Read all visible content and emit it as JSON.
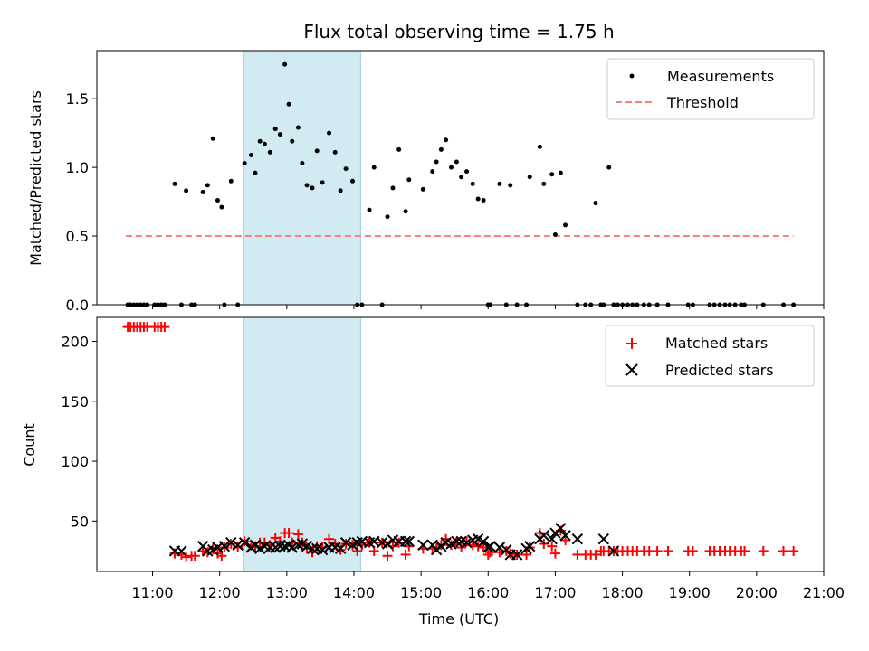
{
  "chart_data": [
    {
      "type": "scatter",
      "title": "Flux total observing time = 1.75 h",
      "xlabel": "",
      "ylabel": "Matched/Predicted stars",
      "ylim": [
        0,
        1.85
      ],
      "yticks": [
        0.0,
        0.5,
        1.0,
        1.5
      ],
      "ytick_labels": [
        "0.0",
        "0.5",
        "1.0",
        "1.5"
      ],
      "xlim_hours": [
        10.17,
        21.0
      ],
      "shaded_interval_hours": [
        12.35,
        14.1
      ],
      "shaded_color": "#add8e6",
      "legend": {
        "position": "top-right",
        "entries": [
          "Measurements",
          "Threshold"
        ]
      },
      "series": [
        {
          "name": "Measurements",
          "marker": "dot",
          "color": "#000000",
          "x": [
            10.63,
            10.67,
            10.72,
            10.77,
            10.82,
            10.87,
            10.92,
            11.03,
            11.08,
            11.13,
            11.18,
            11.33,
            11.43,
            11.5,
            11.58,
            11.63,
            11.75,
            11.82,
            11.9,
            11.97,
            12.03,
            12.07,
            12.17,
            12.27,
            12.37,
            12.47,
            12.53,
            12.6,
            12.67,
            12.75,
            12.83,
            12.9,
            12.97,
            13.03,
            13.08,
            13.17,
            13.23,
            13.3,
            13.38,
            13.45,
            13.53,
            13.63,
            13.72,
            13.8,
            13.88,
            13.98,
            14.05,
            14.12,
            14.23,
            14.3,
            14.42,
            14.5,
            14.58,
            14.67,
            14.77,
            14.82,
            15.03,
            15.17,
            15.23,
            15.3,
            15.37,
            15.45,
            15.53,
            15.6,
            15.68,
            15.77,
            15.85,
            15.93,
            16.0,
            16.03,
            16.17,
            16.27,
            16.33,
            16.43,
            16.57,
            16.62,
            16.77,
            16.83,
            16.95,
            17.0,
            17.08,
            17.15,
            17.33,
            17.45,
            17.53,
            17.6,
            17.68,
            17.72,
            17.8,
            17.87,
            17.93,
            18.0,
            18.08,
            18.15,
            18.22,
            18.32,
            18.4,
            18.52,
            18.68,
            18.98,
            19.05,
            19.3,
            19.37,
            19.45,
            19.53,
            19.6,
            19.68,
            19.77,
            19.82,
            20.1,
            20.4,
            20.55
          ],
          "y": [
            0,
            0,
            0,
            0,
            0,
            0,
            0,
            0,
            0,
            0,
            0,
            0.88,
            0,
            0.83,
            0,
            0,
            0.82,
            0.87,
            1.21,
            0.76,
            0.71,
            0,
            0.9,
            0,
            1.03,
            1.09,
            0.96,
            1.19,
            1.17,
            1.11,
            1.28,
            1.24,
            1.75,
            1.46,
            1.19,
            1.29,
            1.03,
            0.87,
            0.85,
            1.12,
            0.89,
            1.25,
            1.11,
            0.83,
            0.99,
            0.9,
            0,
            0,
            0.69,
            1.0,
            0,
            0.64,
            0.85,
            1.13,
            0.68,
            0.91,
            0.84,
            0.97,
            1.04,
            1.13,
            1.2,
            1.0,
            1.04,
            0.93,
            0.97,
            0.88,
            0.77,
            0.76,
            0,
            0,
            0.88,
            0,
            0.87,
            0,
            0,
            0.93,
            1.15,
            0.88,
            0.95,
            0.51,
            0.96,
            0.58,
            0,
            0,
            0,
            0.74,
            0,
            0,
            1.0,
            0,
            0,
            0,
            0,
            0,
            0,
            0,
            0,
            0,
            0,
            0,
            0,
            0,
            0,
            0,
            0,
            0,
            0,
            0,
            0,
            0,
            0,
            0
          ]
        },
        {
          "name": "Threshold",
          "style": "dashed",
          "color": "#ff7f7f",
          "x": [
            10.6,
            20.55
          ],
          "y": [
            0.5,
            0.5
          ]
        }
      ]
    },
    {
      "type": "scatter",
      "title": "",
      "xlabel": "Time (UTC)",
      "ylabel": "Count",
      "ylim": [
        8,
        220
      ],
      "yticks": [
        50,
        100,
        150,
        200
      ],
      "ytick_labels": [
        "50",
        "100",
        "150",
        "200"
      ],
      "xlim_hours": [
        10.17,
        21.0
      ],
      "xticks_hours": [
        11,
        12,
        13,
        14,
        15,
        16,
        17,
        18,
        19,
        20,
        21
      ],
      "xtick_labels": [
        "11:00",
        "12:00",
        "13:00",
        "14:00",
        "15:00",
        "16:00",
        "17:00",
        "18:00",
        "19:00",
        "20:00",
        "21:00"
      ],
      "shaded_interval_hours": [
        12.35,
        14.1
      ],
      "shaded_color": "#add8e6",
      "legend": {
        "position": "top-right",
        "entries": [
          "Matched stars",
          "Predicted stars"
        ]
      },
      "series": [
        {
          "name": "Matched stars",
          "marker": "plus",
          "color": "#ff0000",
          "x": [
            10.63,
            10.67,
            10.72,
            10.77,
            10.82,
            10.87,
            10.92,
            11.03,
            11.08,
            11.13,
            11.18,
            11.33,
            11.43,
            11.5,
            11.58,
            11.63,
            11.75,
            11.82,
            11.9,
            11.97,
            12.03,
            12.07,
            12.17,
            12.27,
            12.37,
            12.47,
            12.53,
            12.6,
            12.67,
            12.75,
            12.83,
            12.9,
            12.97,
            13.03,
            13.08,
            13.17,
            13.23,
            13.3,
            13.38,
            13.45,
            13.53,
            13.63,
            13.72,
            13.8,
            13.88,
            13.98,
            14.05,
            14.12,
            14.23,
            14.3,
            14.42,
            14.5,
            14.58,
            14.67,
            14.77,
            14.82,
            15.03,
            15.17,
            15.23,
            15.3,
            15.37,
            15.45,
            15.53,
            15.6,
            15.68,
            15.77,
            15.85,
            15.93,
            16.0,
            16.03,
            16.17,
            16.27,
            16.33,
            16.43,
            16.57,
            16.62,
            16.77,
            16.83,
            16.95,
            17.0,
            17.08,
            17.15,
            17.33,
            17.45,
            17.53,
            17.6,
            17.68,
            17.72,
            17.8,
            17.87,
            17.93,
            18.0,
            18.08,
            18.15,
            18.22,
            18.32,
            18.4,
            18.52,
            18.68,
            18.98,
            19.05,
            19.3,
            19.37,
            19.45,
            19.53,
            19.6,
            19.68,
            19.77,
            19.82,
            20.1,
            20.4,
            20.55
          ],
          "y": [
            212,
            212,
            212,
            212,
            212,
            212,
            212,
            212,
            212,
            212,
            212,
            23,
            22,
            20,
            21,
            21,
            25,
            24,
            27,
            23,
            21,
            28,
            31,
            28,
            33,
            30,
            29,
            32,
            32,
            30,
            36,
            33,
            40,
            40,
            32,
            39,
            32,
            27,
            24,
            29,
            28,
            35,
            31,
            26,
            31,
            30,
            25,
            30,
            32,
            25,
            32,
            21,
            29,
            32,
            22,
            29,
            27,
            27,
            28,
            30,
            35,
            30,
            32,
            28,
            33,
            30,
            29,
            28,
            22,
            24,
            24,
            25,
            23,
            22,
            22,
            28,
            40,
            31,
            29,
            23,
            42,
            34,
            22,
            22,
            22,
            22,
            25,
            25,
            25,
            25,
            25,
            25,
            25,
            25,
            25,
            25,
            25,
            25,
            25,
            25,
            25,
            25,
            25,
            25,
            25,
            25,
            25,
            25,
            25,
            25,
            25,
            25
          ]
        },
        {
          "name": "Predicted stars",
          "marker": "x",
          "color": "#000000",
          "x": [
            11.33,
            11.43,
            11.75,
            11.82,
            11.9,
            11.97,
            12.07,
            12.17,
            12.27,
            12.37,
            12.47,
            12.53,
            12.6,
            12.67,
            12.75,
            12.83,
            12.9,
            12.97,
            13.03,
            13.08,
            13.17,
            13.23,
            13.3,
            13.38,
            13.45,
            13.53,
            13.63,
            13.72,
            13.8,
            13.88,
            13.98,
            14.05,
            14.12,
            14.23,
            14.3,
            14.42,
            14.5,
            14.58,
            14.67,
            14.77,
            14.82,
            15.03,
            15.17,
            15.23,
            15.3,
            15.37,
            15.45,
            15.53,
            15.6,
            15.68,
            15.77,
            15.85,
            15.93,
            16.0,
            16.03,
            16.17,
            16.27,
            16.33,
            16.43,
            16.57,
            16.62,
            16.77,
            16.83,
            16.95,
            17.0,
            17.08,
            17.15,
            17.33,
            17.72,
            17.87
          ],
          "y": [
            25,
            25,
            29,
            25,
            26,
            28,
            29,
            32,
            30,
            32,
            28,
            30,
            27,
            29,
            28,
            28,
            29,
            29,
            30,
            28,
            30,
            31,
            29,
            27,
            27,
            26,
            28,
            28,
            27,
            32,
            30,
            32,
            33,
            32,
            33,
            32,
            31,
            34,
            33,
            33,
            33,
            30,
            30,
            26,
            29,
            32,
            31,
            33,
            33,
            32,
            34,
            35,
            33,
            28,
            29,
            28,
            26,
            22,
            22,
            27,
            29,
            35,
            38,
            35,
            40,
            44,
            38,
            35,
            35,
            25
          ]
        }
      ]
    }
  ]
}
